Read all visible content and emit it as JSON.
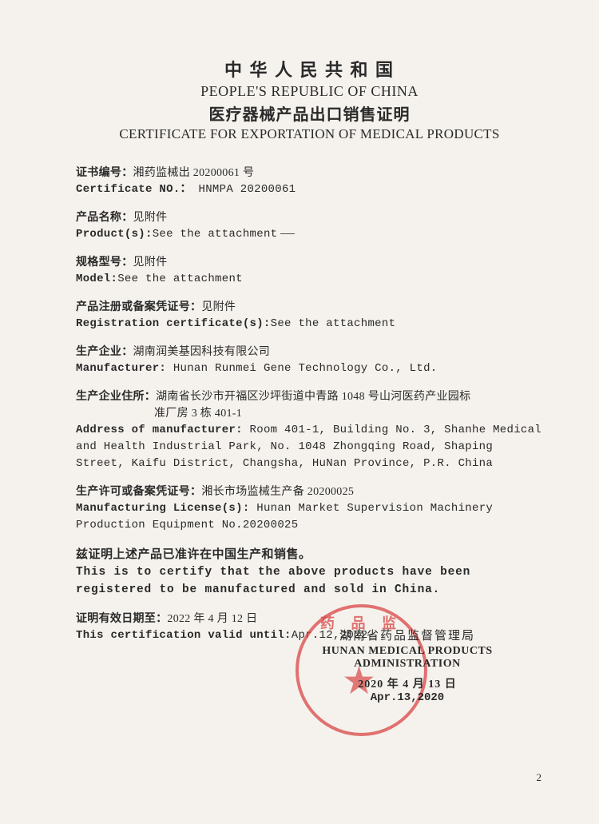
{
  "header": {
    "title_cn": "中 华 人 民 共 和 国",
    "title_en": "PEOPLE'S REPUBLIC OF CHINA",
    "subtitle_cn": "医疗器械产品出口销售证明",
    "subtitle_en": "CERTIFICATE FOR EXPORTATION OF MEDICAL PRODUCTS"
  },
  "certificate_no": {
    "label_cn": "证书编号：",
    "value_cn": "湘药监械出 20200061 号",
    "label_en": "Certificate NO.：",
    "value_en": "HNMPA 20200061"
  },
  "product": {
    "label_cn": "产品名称：",
    "value_cn": "见附件",
    "label_en": "Product(s):",
    "value_en": "See the attachment"
  },
  "model": {
    "label_cn": "规格型号：",
    "value_cn": "见附件",
    "label_en": "Model:",
    "value_en": "See the attachment"
  },
  "registration": {
    "label_cn": "产品注册或备案凭证号：",
    "value_cn": "见附件",
    "label_en": "Registration certificate(s):",
    "value_en": "See the attachment"
  },
  "manufacturer": {
    "label_cn": "生产企业：",
    "value_cn": "湖南润美基因科技有限公司",
    "label_en": "Manufacturer:",
    "value_en": "Hunan Runmei Gene Technology Co., Ltd."
  },
  "address": {
    "label_cn": "生产企业住所：",
    "value_cn_line1": "湖南省长沙市开福区沙坪街道中青路 1048 号山河医药产业园标",
    "value_cn_line2": "准厂房 3 栋 401-1",
    "label_en": "Address of manufacturer:",
    "value_en": "Room 401-1, Building No. 3, Shanhe Medical and Health Industrial Park, No. 1048 Zhongqing Road, Shaping Street, Kaifu District, Changsha, HuNan Province, P.R. China"
  },
  "license": {
    "label_cn": "生产许可或备案凭证号：",
    "value_cn": "湘长市场监械生产备 20200025",
    "label_en": "Manufacturing License(s):",
    "value_en": "Hunan Market Supervision Machinery Production Equipment No.20200025"
  },
  "statement": {
    "cn": "兹证明上述产品已准许在中国生产和销售。",
    "en": "This is to certify that the above products have been registered to be manufactured and sold in China."
  },
  "valid_until": {
    "label_cn": "证明有效日期至：",
    "value_cn": "2022 年 4 月 12 日",
    "label_en": "This certification valid until:",
    "value_en": "Apr.12,2022"
  },
  "issuer": {
    "name_cn": "湖南省药品监督管理局",
    "name_en": "HUNAN MEDICAL PRODUCTS ADMINISTRATION",
    "date_cn": "2020 年 4 月 13 日",
    "date_en": "Apr.13,2020"
  },
  "stamp": {
    "arc_text": "药 品 监",
    "color": "#d84545"
  },
  "page_number": "2"
}
